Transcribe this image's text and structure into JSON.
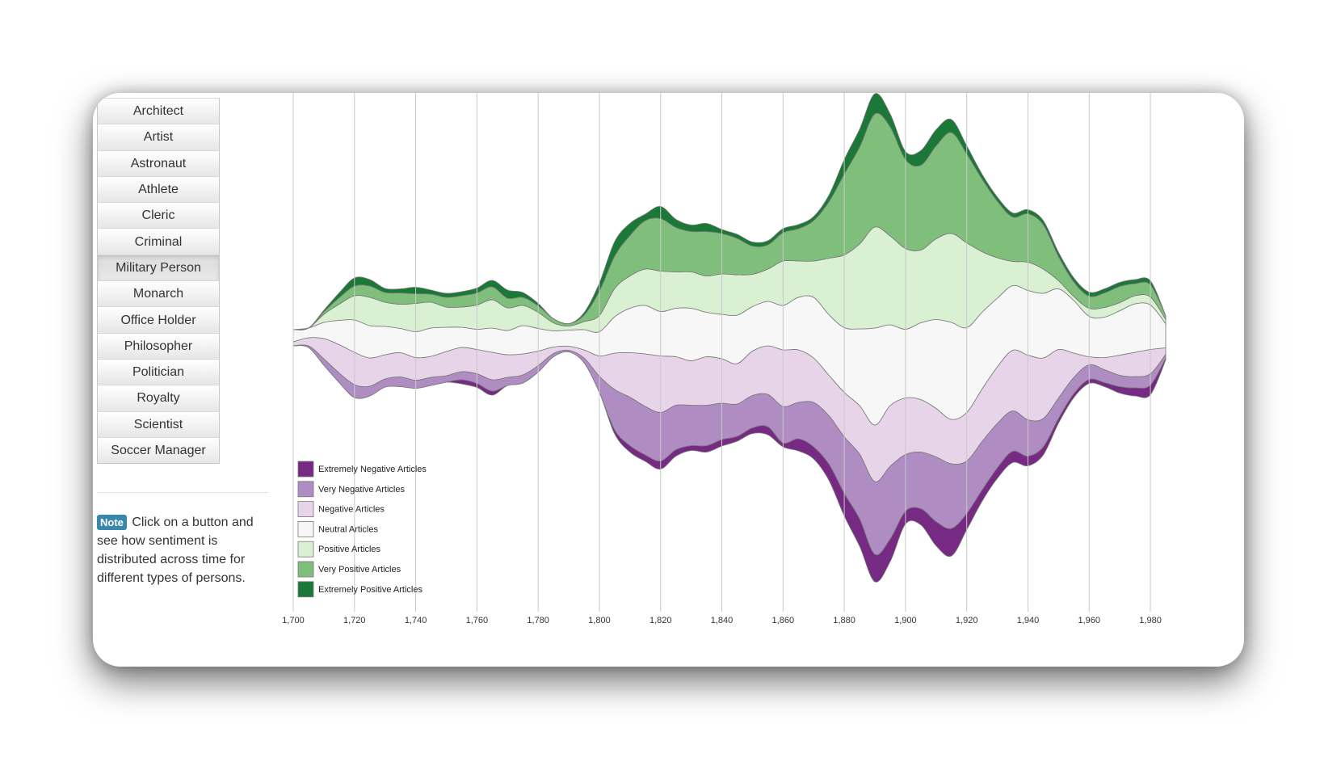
{
  "sidebar": {
    "buttons": [
      "Architect",
      "Artist",
      "Astronaut",
      "Athlete",
      "Cleric",
      "Criminal",
      "Military Person",
      "Monarch",
      "Office Holder",
      "Philosopher",
      "Politician",
      "Royalty",
      "Scientist",
      "Soccer Manager"
    ],
    "active_button": "Military Person",
    "note_badge": "Note",
    "note_text": "Click on a button and see how sentiment is distributed across time for different types of persons."
  },
  "chart_data": {
    "type": "area",
    "layout": "streamgraph",
    "grid": "vertical",
    "legend_position": "bottom-left",
    "xlim": [
      1700,
      1985
    ],
    "x_ticks": [
      1700,
      1720,
      1740,
      1760,
      1780,
      1800,
      1820,
      1840,
      1860,
      1880,
      1900,
      1920,
      1940,
      1960,
      1980
    ],
    "x_tick_labels": [
      "1,700",
      "1,720",
      "1,740",
      "1,760",
      "1,780",
      "1,800",
      "1,820",
      "1,840",
      "1,860",
      "1,880",
      "1,900",
      "1,920",
      "1,940",
      "1,960",
      "1,980"
    ],
    "x": [
      1700,
      1705,
      1710,
      1715,
      1720,
      1725,
      1730,
      1735,
      1740,
      1745,
      1750,
      1755,
      1760,
      1765,
      1770,
      1775,
      1780,
      1785,
      1790,
      1795,
      1800,
      1805,
      1810,
      1815,
      1820,
      1825,
      1830,
      1835,
      1840,
      1845,
      1850,
      1855,
      1860,
      1865,
      1870,
      1875,
      1880,
      1885,
      1890,
      1895,
      1900,
      1905,
      1910,
      1915,
      1920,
      1925,
      1930,
      1935,
      1940,
      1945,
      1950,
      1955,
      1960,
      1965,
      1970,
      1975,
      1980,
      1985
    ],
    "series": [
      {
        "name": "Extremely Negative Articles",
        "color": "#762a83",
        "values": [
          0,
          0,
          0,
          0,
          0,
          0,
          0,
          0,
          0,
          0,
          0,
          5,
          5,
          5,
          0,
          0,
          0,
          0,
          0,
          0,
          0,
          5,
          8,
          8,
          10,
          8,
          6,
          8,
          8,
          6,
          7,
          10,
          5,
          15,
          15,
          20,
          28,
          34,
          34,
          28,
          16,
          20,
          30,
          34,
          20,
          14,
          13,
          14,
          12,
          10,
          6,
          5,
          5,
          5,
          8,
          10,
          12,
          2
        ]
      },
      {
        "name": "Very Negative Articles",
        "color": "#af8dc3",
        "values": [
          0,
          2,
          8,
          12,
          16,
          12,
          10,
          12,
          10,
          10,
          8,
          10,
          12,
          14,
          10,
          10,
          8,
          4,
          2,
          6,
          20,
          50,
          60,
          60,
          60,
          55,
          50,
          50,
          45,
          40,
          40,
          40,
          45,
          45,
          55,
          60,
          70,
          80,
          90,
          90,
          70,
          70,
          80,
          80,
          65,
          60,
          55,
          50,
          45,
          35,
          25,
          20,
          18,
          16,
          14,
          14,
          14,
          5
        ]
      },
      {
        "name": "Negative Articles",
        "color": "#e7d4e8",
        "values": [
          5,
          10,
          25,
          35,
          40,
          35,
          30,
          30,
          28,
          26,
          30,
          30,
          30,
          34,
          28,
          26,
          18,
          8,
          5,
          10,
          25,
          45,
          55,
          65,
          70,
          60,
          55,
          60,
          55,
          50,
          55,
          60,
          70,
          65,
          55,
          50,
          55,
          60,
          70,
          75,
          70,
          65,
          60,
          55,
          60,
          65,
          70,
          75,
          80,
          75,
          60,
          30,
          10,
          15,
          25,
          30,
          30,
          8
        ]
      },
      {
        "name": "Neutral Articles",
        "color": "#f7f7f7",
        "values": [
          15,
          12,
          20,
          30,
          40,
          40,
          35,
          30,
          32,
          35,
          30,
          25,
          25,
          30,
          30,
          35,
          28,
          20,
          20,
          25,
          30,
          45,
          55,
          60,
          55,
          60,
          65,
          55,
          55,
          60,
          55,
          55,
          55,
          65,
          75,
          75,
          80,
          95,
          120,
          100,
          85,
          95,
          110,
          120,
          105,
          95,
          85,
          80,
          80,
          80,
          75,
          65,
          50,
          50,
          55,
          60,
          55,
          30
        ]
      },
      {
        "name": "Positive Articles",
        "color": "#d9f0d3",
        "values": [
          0,
          0,
          10,
          20,
          30,
          35,
          30,
          30,
          35,
          32,
          25,
          25,
          30,
          35,
          28,
          25,
          20,
          10,
          5,
          10,
          20,
          35,
          40,
          45,
          50,
          45,
          45,
          45,
          50,
          50,
          40,
          40,
          55,
          45,
          45,
          70,
          90,
          105,
          125,
          110,
          100,
          90,
          100,
          110,
          105,
          75,
          50,
          30,
          35,
          30,
          10,
          5,
          10,
          12,
          10,
          10,
          10,
          5
        ]
      },
      {
        "name": "Very Positive Articles",
        "color": "#7fbf7b",
        "values": [
          0,
          0,
          3,
          8,
          12,
          14,
          12,
          14,
          12,
          10,
          12,
          14,
          15,
          16,
          12,
          10,
          8,
          5,
          3,
          8,
          30,
          40,
          50,
          60,
          65,
          55,
          50,
          55,
          50,
          45,
          35,
          30,
          35,
          40,
          50,
          70,
          100,
          120,
          140,
          135,
          110,
          105,
          115,
          125,
          110,
          90,
          70,
          55,
          60,
          55,
          30,
          18,
          15,
          18,
          20,
          15,
          15,
          5
        ]
      },
      {
        "name": "Extremely Positive Articles",
        "color": "#1b7837",
        "values": [
          0,
          0,
          2,
          6,
          10,
          8,
          5,
          5,
          8,
          5,
          5,
          5,
          6,
          8,
          10,
          6,
          3,
          0,
          0,
          3,
          10,
          18,
          15,
          8,
          15,
          10,
          8,
          10,
          5,
          5,
          5,
          5,
          5,
          5,
          5,
          8,
          18,
          22,
          25,
          16,
          10,
          18,
          20,
          16,
          10,
          6,
          5,
          5,
          5,
          5,
          5,
          5,
          5,
          5,
          5,
          5,
          5,
          0
        ]
      }
    ]
  }
}
